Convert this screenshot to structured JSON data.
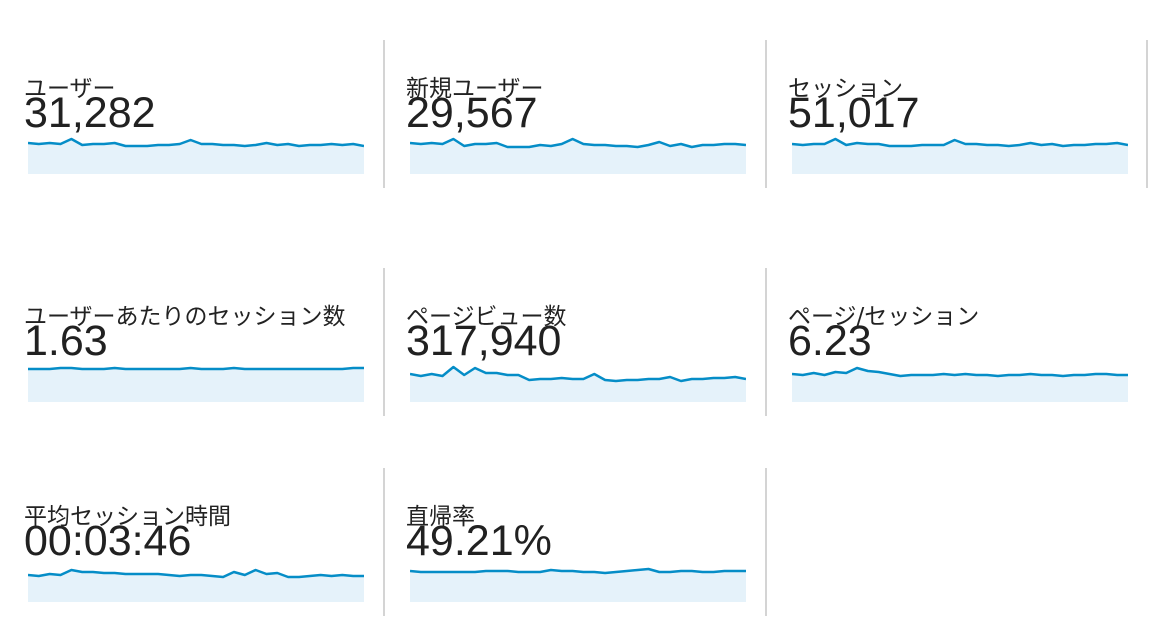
{
  "cards": [
    {
      "label": "ユーザー",
      "value": "31,282",
      "trend": [
        31,
        30,
        31,
        30,
        35,
        29,
        30,
        30,
        31,
        28,
        28,
        28,
        29,
        29,
        30,
        34,
        30,
        30,
        29,
        29,
        28,
        29,
        31,
        29,
        30,
        28,
        29,
        29,
        30,
        29,
        30,
        28
      ]
    },
    {
      "label": "新規ユーザー",
      "value": "29,567",
      "trend": [
        31,
        30,
        31,
        30,
        35,
        28,
        30,
        30,
        31,
        27,
        27,
        27,
        29,
        28,
        30,
        35,
        30,
        29,
        29,
        28,
        28,
        27,
        29,
        32,
        28,
        30,
        27,
        29,
        29,
        30,
        30,
        29
      ]
    },
    {
      "label": "セッション",
      "value": "51,017",
      "trend": [
        30,
        29,
        30,
        30,
        35,
        29,
        31,
        30,
        30,
        28,
        28,
        28,
        29,
        29,
        29,
        34,
        30,
        30,
        29,
        29,
        28,
        29,
        31,
        29,
        30,
        28,
        29,
        29,
        30,
        30,
        31,
        29
      ]
    },
    {
      "label": "ユーザーあたりのセッション数",
      "value": "1.63",
      "trend": [
        33,
        33,
        33,
        34,
        34,
        33,
        33,
        33,
        34,
        33,
        33,
        33,
        33,
        33,
        33,
        34,
        33,
        33,
        33,
        34,
        33,
        33,
        33,
        33,
        33,
        33,
        33,
        33,
        33,
        33,
        34,
        34
      ]
    },
    {
      "label": "ページビュー数",
      "value": "317,940",
      "trend": [
        28,
        26,
        28,
        26,
        35,
        27,
        34,
        29,
        29,
        27,
        27,
        22,
        23,
        23,
        24,
        23,
        23,
        28,
        22,
        21,
        22,
        22,
        23,
        23,
        25,
        21,
        23,
        23,
        24,
        24,
        25,
        23
      ]
    },
    {
      "label": "ページ/セッション",
      "value": "6.23",
      "trend": [
        28,
        27,
        29,
        27,
        30,
        29,
        34,
        31,
        30,
        28,
        26,
        27,
        27,
        27,
        28,
        27,
        28,
        27,
        27,
        26,
        27,
        27,
        28,
        27,
        27,
        26,
        27,
        27,
        28,
        28,
        27,
        27
      ]
    },
    {
      "label": "平均セッション時間",
      "value": "00:03:46",
      "trend": [
        27,
        26,
        28,
        27,
        32,
        30,
        30,
        29,
        29,
        28,
        28,
        28,
        28,
        27,
        26,
        27,
        27,
        26,
        25,
        30,
        27,
        32,
        28,
        29,
        25,
        25,
        26,
        27,
        26,
        27,
        26,
        26
      ]
    },
    {
      "label": "直帰率",
      "value": "49.21%",
      "trend": [
        31,
        30,
        30,
        30,
        30,
        30,
        30,
        31,
        31,
        31,
        30,
        30,
        30,
        32,
        31,
        31,
        30,
        30,
        29,
        30,
        31,
        32,
        33,
        30,
        30,
        31,
        31,
        30,
        30,
        31,
        31,
        31
      ]
    }
  ]
}
